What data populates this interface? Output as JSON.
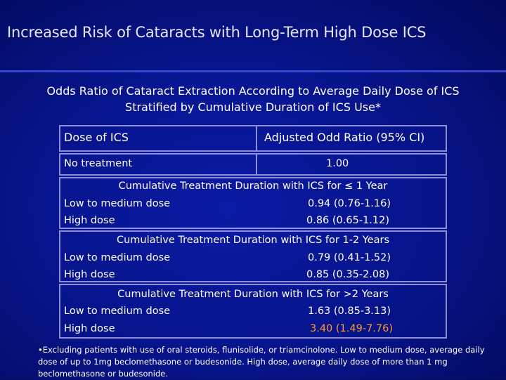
{
  "title": "Increased Risk of Cataracts with Long-Term High Dose ICS",
  "subtitle_line1": "Odds Ratio of Cataract Extraction According to Average Daily Dose of ICS",
  "subtitle_line2": "Stratified by Cumulative Duration of ICS Use*",
  "table": {
    "header": {
      "col1": "Dose of ICS",
      "col2": "Adjusted Odd Ratio (95% CI)"
    },
    "no_treatment": {
      "label": "No treatment",
      "value": "1.00"
    },
    "groups": [
      {
        "heading": "Cumulative Treatment Duration with ICS for ≤ 1 Year",
        "rows": [
          {
            "label": "Low to medium dose",
            "value": "0.94 (0.76-1.16)"
          },
          {
            "label": "High dose",
            "value": "0.86 (0.65-1.12)"
          }
        ]
      },
      {
        "heading": "Cumulative Treatment Duration with ICS for 1-2 Years",
        "rows": [
          {
            "label": "Low to medium dose",
            "value": "0.79 (0.41-1.52)"
          },
          {
            "label": "High dose",
            "value": "0.85 (0.35-2.08)"
          }
        ]
      },
      {
        "heading": "Cumulative Treatment Duration with ICS for >2 Years",
        "rows": [
          {
            "label": "Low to medium dose",
            "value": "1.63 (0.85-3.13)"
          },
          {
            "label": "High dose",
            "value": "3.40 (1.49-7.76)"
          }
        ]
      }
    ]
  },
  "footnote": "•Excluding patients with use of oral steroids, flunisolide, or triamcinolone.  Low to medium dose, average daily dose of up to 1mg beclomethasone or budesonide.  High dose, average daily dose of more than 1 mg beclomethasone or budesonide.",
  "colors": {
    "background": "#071590",
    "highlight": "#ff9933",
    "border": "#8c8fd6"
  }
}
